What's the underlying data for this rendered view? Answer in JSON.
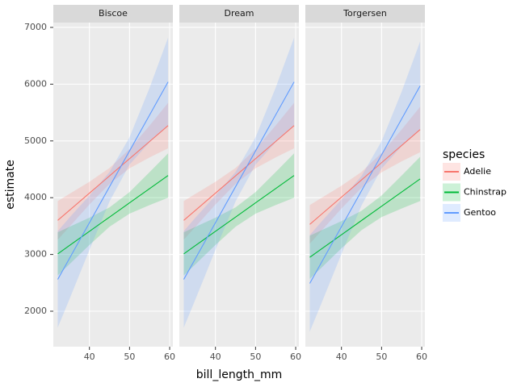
{
  "chart_data": {
    "type": "line",
    "x_label": "bill_length_mm",
    "y_label": "estimate",
    "legend_title": "species",
    "legend_position": "right",
    "grid": true,
    "xlim": [
      31,
      60.8
    ],
    "xticks": [
      40,
      50,
      60
    ],
    "ylim": [
      1375,
      7085
    ],
    "yticks": [
      2000,
      3000,
      4000,
      5000,
      6000,
      7000
    ],
    "x": [
      32.1,
      35,
      40,
      45,
      50,
      55,
      59.6
    ],
    "species": [
      {
        "name": "Adelie",
        "color": "#F8766D"
      },
      {
        "name": "Chinstrap",
        "color": "#00BA38"
      },
      {
        "name": "Gentoo",
        "color": "#619CFF"
      }
    ],
    "facets": [
      {
        "title": "Biscoe",
        "series": [
          {
            "values": [
              3600,
              3776,
              4080,
              4383,
              4687,
              4990,
              5270
            ],
            "lower": [
              3260,
              3486,
              3880,
              4243,
              4517,
              4710,
              4870
            ],
            "upper": [
              3940,
              4066,
              4280,
              4523,
              4857,
              5270,
              5670
            ]
          },
          {
            "values": [
              3010,
              3156,
              3407,
              3658,
              3909,
              4160,
              4390
            ],
            "lower": [
              2630,
              2826,
              3167,
              3488,
              3719,
              3870,
              4000
            ],
            "upper": [
              3390,
              3486,
              3647,
              3828,
              4099,
              4450,
              4780
            ]
          },
          {
            "values": [
              2560,
              2927,
              3559,
              4192,
              4824,
              5457,
              6039
            ],
            "lower": [
              1710,
              2207,
              3079,
              3932,
              4584,
              4977,
              5259
            ],
            "upper": [
              3410,
              3647,
              4039,
              4452,
              5064,
              5937,
              6819
            ]
          }
        ]
      },
      {
        "title": "Dream",
        "series": [
          {
            "values": [
              3600,
              3776,
              4080,
              4383,
              4687,
              4990,
              5270
            ],
            "lower": [
              3260,
              3486,
              3880,
              4243,
              4517,
              4710,
              4870
            ],
            "upper": [
              3940,
              4066,
              4280,
              4523,
              4857,
              5270,
              5670
            ]
          },
          {
            "values": [
              3010,
              3156,
              3407,
              3658,
              3909,
              4160,
              4390
            ],
            "lower": [
              2630,
              2826,
              3167,
              3488,
              3719,
              3870,
              4000
            ],
            "upper": [
              3390,
              3486,
              3647,
              3828,
              4099,
              4450,
              4780
            ]
          },
          {
            "values": [
              2560,
              2927,
              3559,
              4192,
              4824,
              5457,
              6039
            ],
            "lower": [
              1710,
              2207,
              3079,
              3932,
              4584,
              4977,
              5259
            ],
            "upper": [
              3410,
              3647,
              4039,
              4452,
              5064,
              5937,
              6819
            ]
          }
        ]
      },
      {
        "title": "Torgersen",
        "series": [
          {
            "values": [
              3530,
              3706,
              4010,
              4313,
              4617,
              4920,
              5200
            ],
            "lower": [
              3190,
              3416,
              3810,
              4173,
              4447,
              4640,
              4800
            ],
            "upper": [
              3870,
              3996,
              4210,
              4453,
              4787,
              5200,
              5600
            ]
          },
          {
            "values": [
              2950,
              3096,
              3347,
              3598,
              3849,
              4100,
              4330
            ],
            "lower": [
              2570,
              2766,
              3107,
              3428,
              3659,
              3810,
              3940
            ],
            "upper": [
              3330,
              3426,
              3587,
              3768,
              4039,
              4390,
              4720
            ]
          },
          {
            "values": [
              2490,
              2857,
              3489,
              4122,
              4754,
              5387,
              5969
            ],
            "lower": [
              1640,
              2137,
              3009,
              3862,
              4514,
              4907,
              5189
            ],
            "upper": [
              3340,
              3577,
              3969,
              4382,
              4994,
              5867,
              6749
            ]
          }
        ]
      }
    ]
  }
}
